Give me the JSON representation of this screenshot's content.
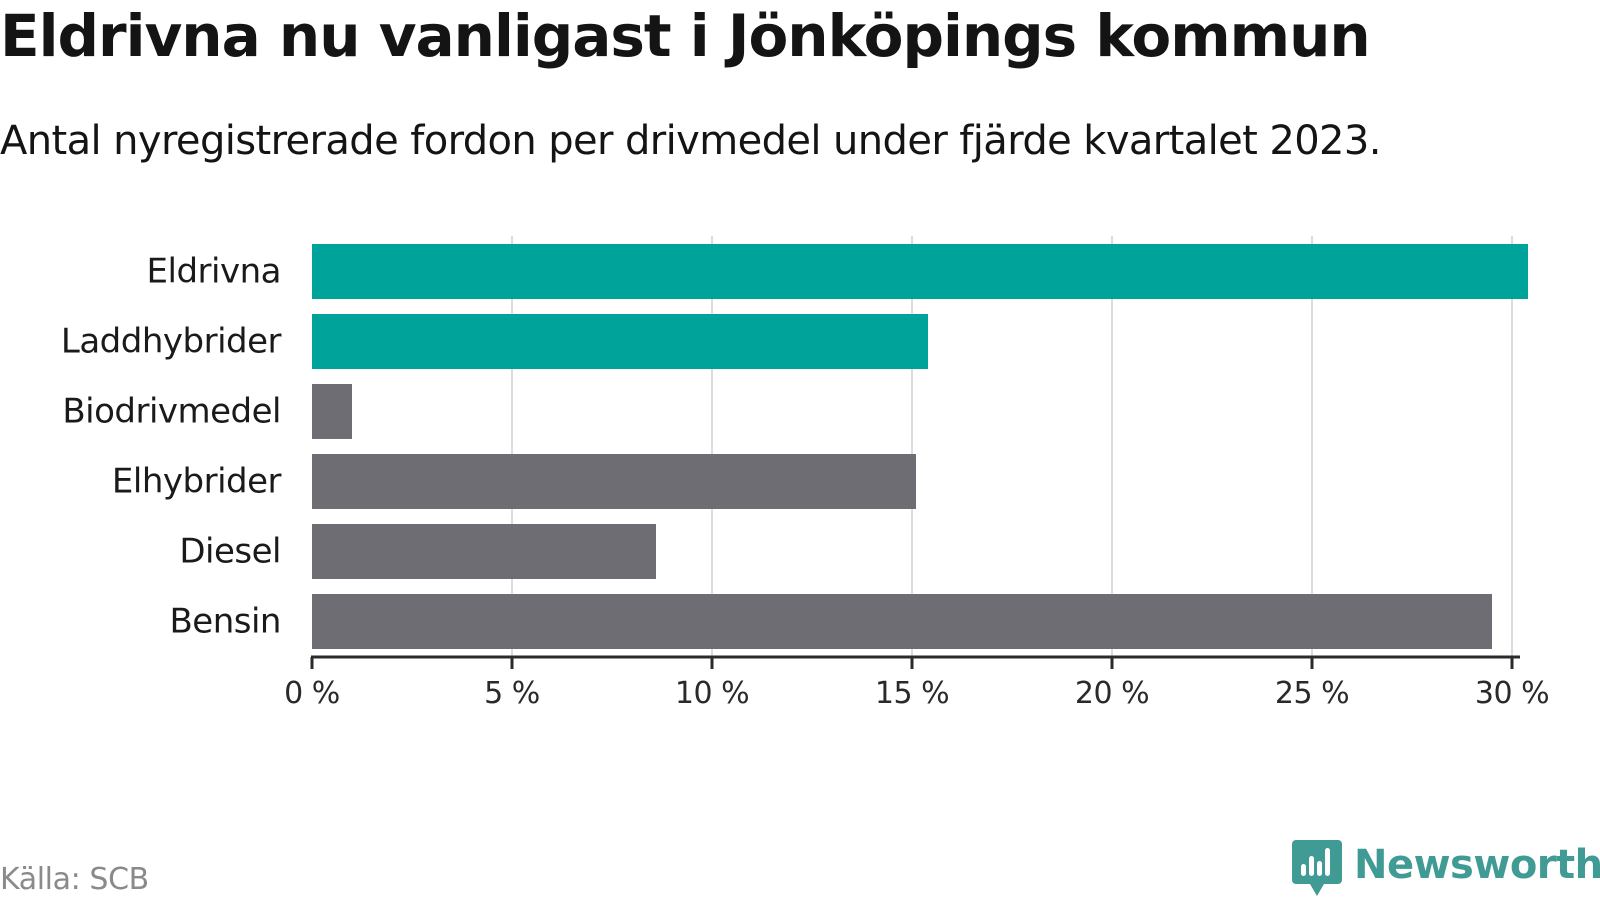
{
  "header": {
    "title": "Eldrivna nu vanligast i Jönköpings kommun",
    "subtitle": "Antal nyregistrerade fordon per drivmedel under fjärde kvartalet 2023."
  },
  "footer": {
    "source": "Källa: SCB",
    "brand": "Newsworthy"
  },
  "colors": {
    "highlight": "#00a39a",
    "neutral": "#6e6d74",
    "grid": "#dcdcdc",
    "axis": "#2a2a2a",
    "brand": "#3f9b93"
  },
  "chart_data": {
    "type": "bar",
    "orientation": "horizontal",
    "title": "Eldrivna nu vanligast i Jönköpings kommun",
    "xlabel": "",
    "ylabel": "",
    "xlim": [
      0,
      30
    ],
    "x_ticks": [
      0,
      5,
      10,
      15,
      20,
      25,
      30
    ],
    "tick_suffix": " %",
    "grid": true,
    "categories": [
      "Eldrivna",
      "Laddhybrider",
      "Biodrivmedel",
      "Elhybrider",
      "Diesel",
      "Bensin"
    ],
    "values": [
      30.4,
      15.4,
      1.0,
      15.1,
      8.6,
      29.5
    ],
    "highlight": [
      true,
      true,
      false,
      false,
      false,
      false
    ]
  }
}
